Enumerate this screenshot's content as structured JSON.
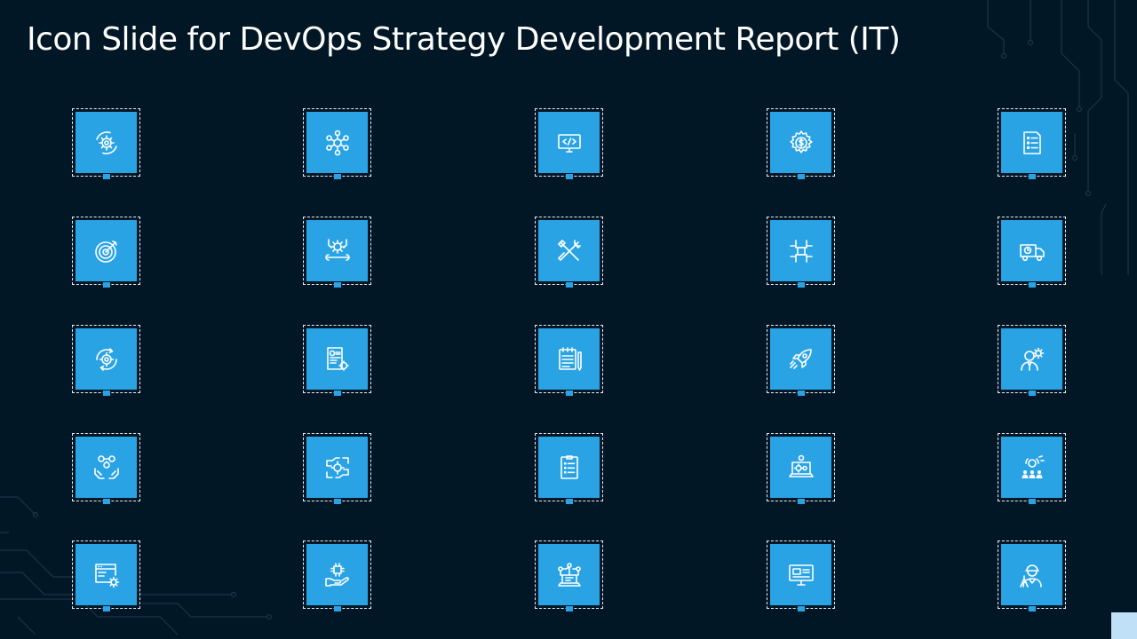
{
  "slide": {
    "title": "Icon Slide for DevOps Strategy Development Report (IT)",
    "accent_color": "#2aa3e5",
    "background_color": "#021726"
  },
  "icons": [
    "gear-cycle-icon",
    "network-hub-icon",
    "code-monitor-icon",
    "dollar-gear-icon",
    "checklist-document-icon",
    "target-icon",
    "settings-wrench-icon",
    "tools-icon",
    "handshake-team-icon",
    "delivery-truck-icon",
    "refresh-gear-icon",
    "report-document-icon",
    "notepad-pen-icon",
    "rocket-icon",
    "person-gear-icon",
    "money-hands-icon",
    "gear-hands-icon",
    "task-list-icon",
    "laptop-gears-icon",
    "team-idea-icon",
    "browser-gear-icon",
    "hand-chip-icon",
    "connected-laptop-icon",
    "desktop-monitor-icon",
    "engineer-icon"
  ]
}
